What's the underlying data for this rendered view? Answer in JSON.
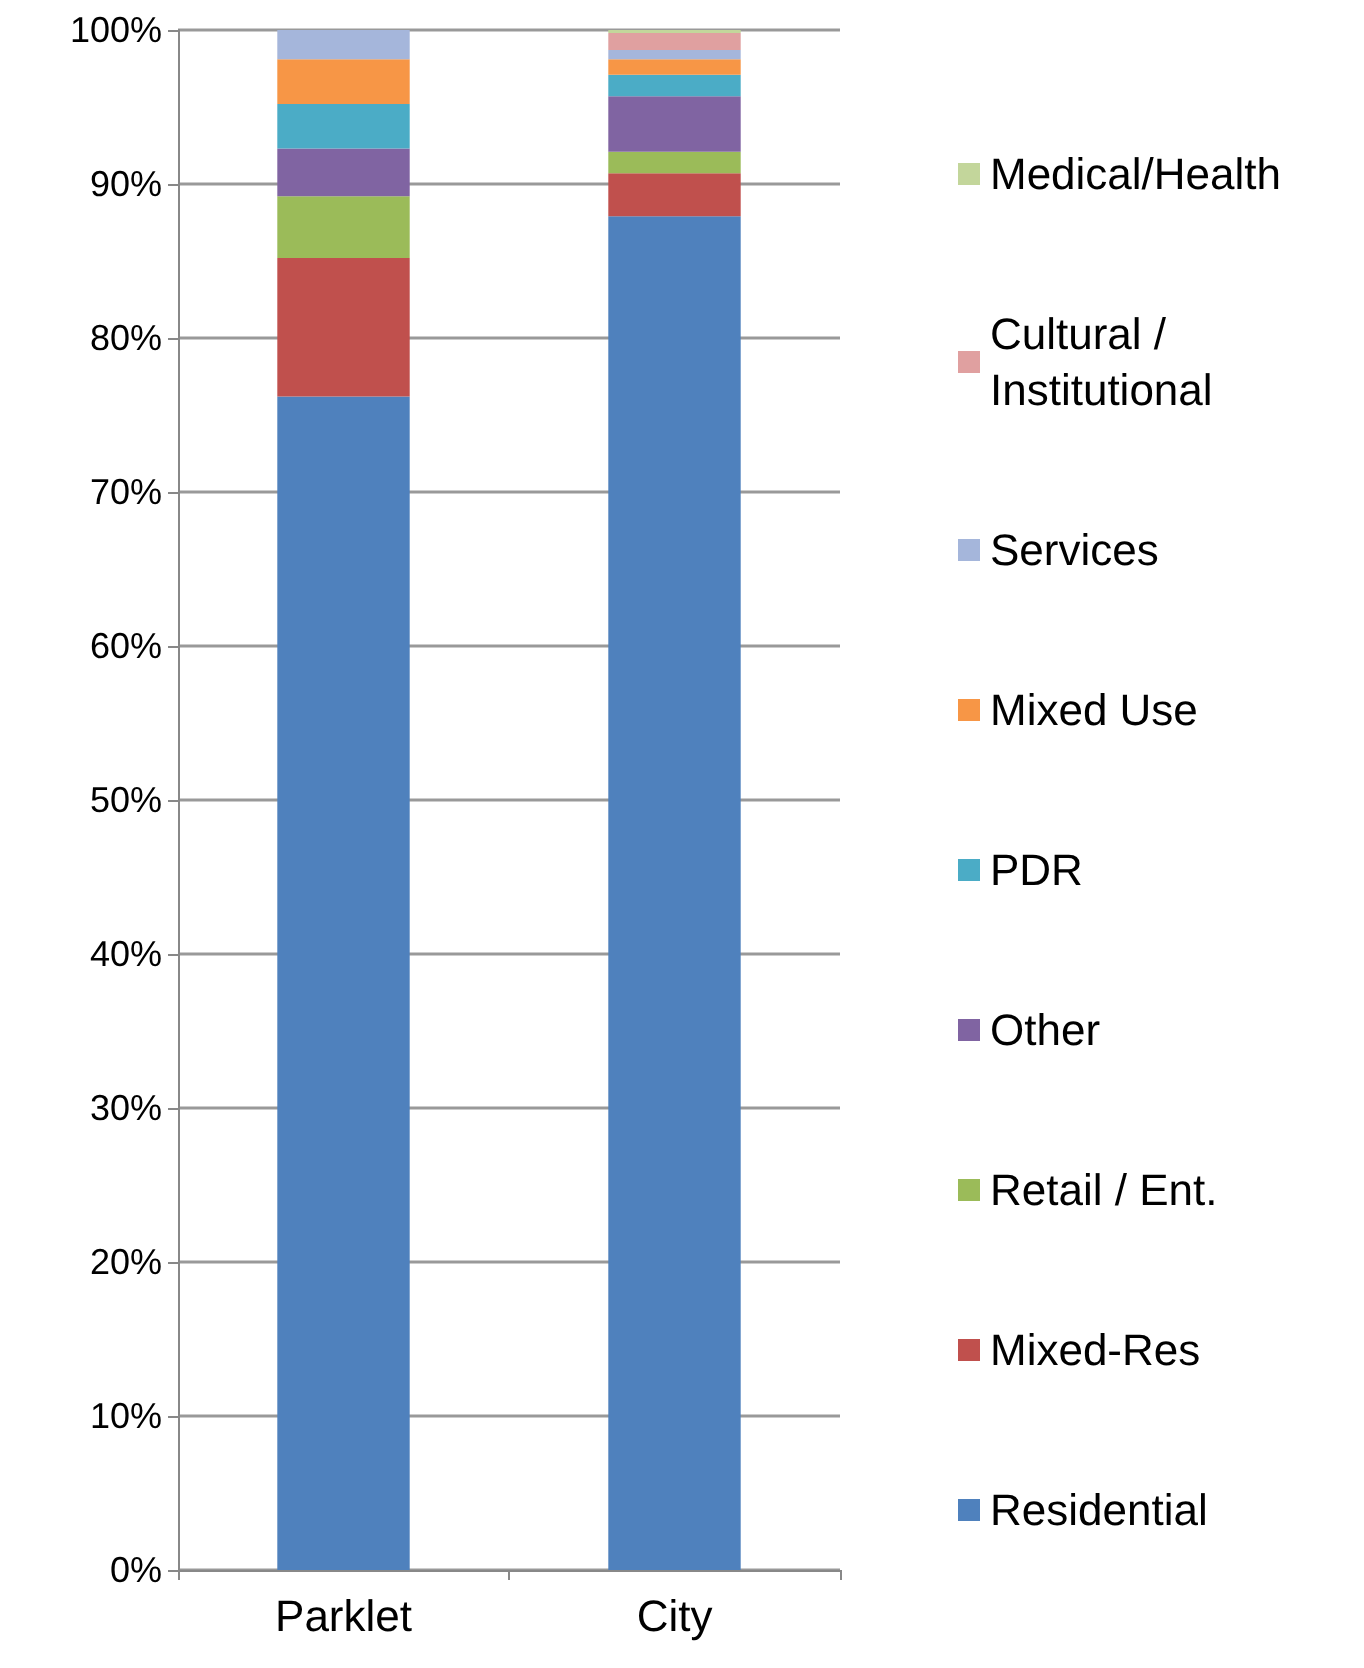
{
  "chart_data": {
    "type": "bar",
    "stacked": true,
    "categories": [
      "Parklet",
      "City"
    ],
    "series": [
      {
        "name": "Residential",
        "color": "#4f81bd",
        "values": [
          76.2,
          87.9
        ]
      },
      {
        "name": "Mixed-Res",
        "color": "#c0504d",
        "values": [
          9.0,
          2.8
        ]
      },
      {
        "name": "Retail / Ent.",
        "color": "#9bbb59",
        "values": [
          4.0,
          1.4
        ]
      },
      {
        "name": "Other",
        "color": "#8064a2",
        "values": [
          3.1,
          3.6
        ]
      },
      {
        "name": "PDR",
        "color": "#4bacc6",
        "values": [
          2.9,
          1.4
        ]
      },
      {
        "name": "Mixed Use",
        "color": "#f79646",
        "values": [
          2.9,
          1.0
        ]
      },
      {
        "name": "Services",
        "color": "#a5b6db",
        "values": [
          1.9,
          0.6
        ]
      },
      {
        "name": "Cultural / Institutional",
        "color": "#e0a0a0",
        "values": [
          0,
          1.1
        ]
      },
      {
        "name": "Medical/Health",
        "color": "#c3d69b",
        "values": [
          0,
          0.2
        ]
      }
    ],
    "ylim": [
      0,
      100
    ],
    "yticks": [
      {
        "value": 0,
        "label": "0%"
      },
      {
        "value": 10,
        "label": "10%"
      },
      {
        "value": 20,
        "label": "20%"
      },
      {
        "value": 30,
        "label": "30%"
      },
      {
        "value": 40,
        "label": "40%"
      },
      {
        "value": 50,
        "label": "50%"
      },
      {
        "value": 60,
        "label": "60%"
      },
      {
        "value": 70,
        "label": "70%"
      },
      {
        "value": 80,
        "label": "80%"
      },
      {
        "value": 90,
        "label": "90%"
      },
      {
        "value": 100,
        "label": "100%"
      }
    ],
    "grid": "y",
    "legend": "right"
  }
}
